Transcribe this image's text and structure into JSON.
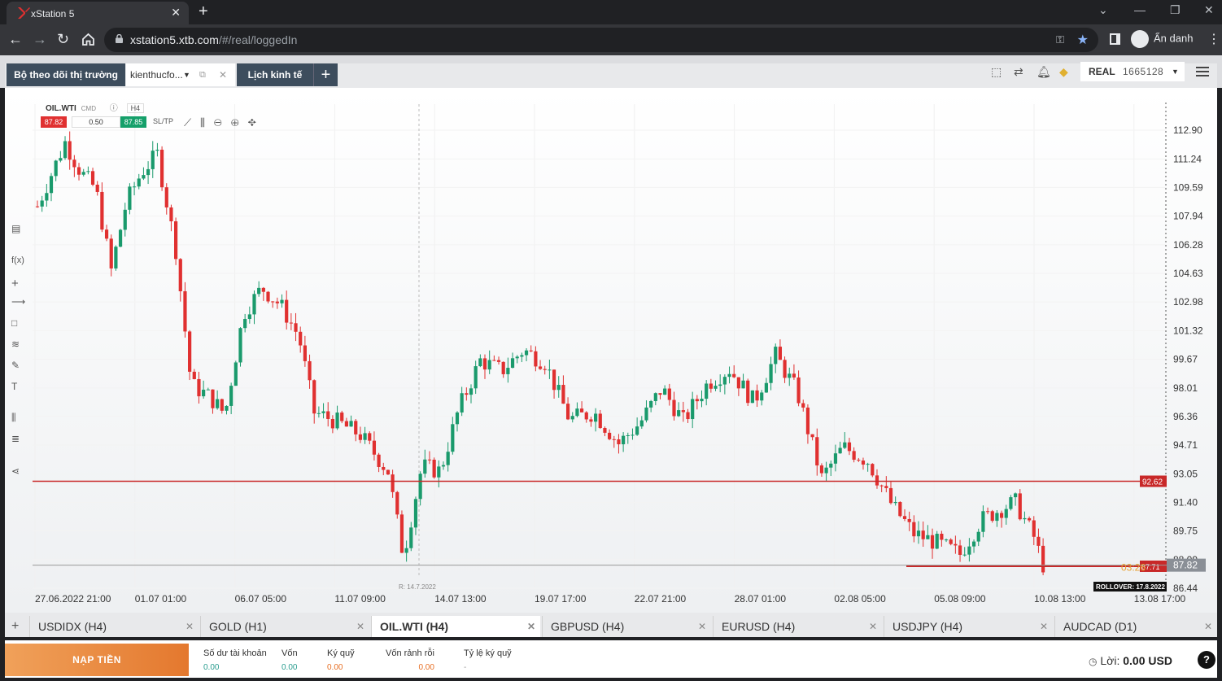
{
  "browser": {
    "tab_title": "xStation 5",
    "url_host": "xstation5.xtb.com",
    "url_path": "/#/real/loggedIn",
    "profile_label": "Ẩn danh"
  },
  "header": {
    "tabs": [
      {
        "label": "Bộ theo dõi thị trường"
      },
      {
        "label": "kienthucfo..."
      },
      {
        "label": "Lịch kinh tế"
      }
    ],
    "add_label": "+",
    "account_type": "REAL",
    "account_number": "1665128"
  },
  "chart": {
    "symbol": "OIL.WTI",
    "cmd": "CMD",
    "timeframe": "H4",
    "sell_price": "87.82",
    "buy_price": "87.85",
    "volume": "0.50",
    "sltp_label": "SL/TP",
    "range_marker": "R: 14.7.2022",
    "rollover": "ROLLOVER: 17.8.2022",
    "countdown": "03:26",
    "hline_label": "92.62",
    "hline2_label": "87.71",
    "price_label": "87.82"
  },
  "chart_data": {
    "type": "candlestick",
    "y_ticks": [
      "112.90",
      "111.24",
      "109.59",
      "107.94",
      "106.28",
      "104.63",
      "102.98",
      "101.32",
      "99.67",
      "98.01",
      "96.36",
      "94.71",
      "93.05",
      "91.40",
      "89.75",
      "88.09",
      "86.44"
    ],
    "ylim": [
      86.44,
      112.9
    ],
    "x_ticks": [
      "27.06.2022 21:00",
      "01.07 01:00",
      "06.07 05:00",
      "11.07 09:00",
      "14.07 13:00",
      "19.07 17:00",
      "22.07 21:00",
      "28.07 01:00",
      "02.08 05:00",
      "05.08 09:00",
      "10.08 13:00",
      "13.08 17:00"
    ],
    "hlines": [
      92.62,
      87.71
    ],
    "current_price": 87.82,
    "colors": {
      "up": "#1a9a6c",
      "down": "#e03030",
      "line": "#c82828"
    }
  },
  "instrument_tabs": [
    {
      "label": "USDIDX (H4)"
    },
    {
      "label": "GOLD (H1)"
    },
    {
      "label": "OIL.WTI (H4)"
    },
    {
      "label": "GBPUSD (H4)"
    },
    {
      "label": "EURUSD (H4)"
    },
    {
      "label": "USDJPY (H4)"
    },
    {
      "label": "AUDCAD (D1)"
    }
  ],
  "footer": {
    "deposit_label": "NẠP TIỀN",
    "stats": [
      {
        "label": "Số dư tài khoản",
        "value": "0.00"
      },
      {
        "label": "Vốn",
        "value": "0.00"
      },
      {
        "label": "Ký quỹ",
        "value": "0.00"
      },
      {
        "label": "Vốn rảnh rỗi",
        "value": "0.00"
      },
      {
        "label": "Tỷ lệ ký quỹ",
        "value": "-"
      }
    ],
    "profit_label": "Lời:",
    "profit_value": "0.00 USD",
    "help": "?"
  }
}
